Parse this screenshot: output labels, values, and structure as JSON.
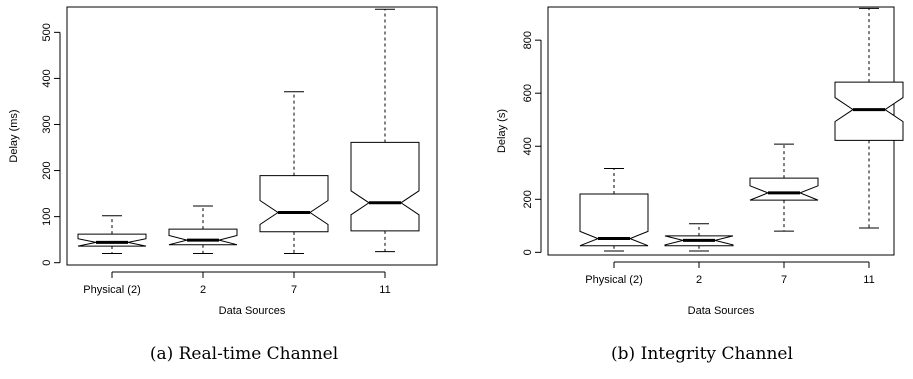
{
  "chart_data": [
    {
      "type": "boxplot",
      "caption": "(a) Real-time Channel",
      "xlabel": "Data Sources",
      "ylabel": "Delay (ms)",
      "categories": [
        "Physical (2)",
        "2",
        "7",
        "11"
      ],
      "ylim": [
        -5,
        555
      ],
      "yticks": [
        0,
        100,
        200,
        300,
        400,
        500
      ],
      "notched": true,
      "boxes": [
        {
          "min": 20,
          "q1": 36,
          "median": 44,
          "q3": 62,
          "max": 102
        },
        {
          "min": 20,
          "q1": 39,
          "median": 49,
          "q3": 73,
          "max": 123
        },
        {
          "min": 20,
          "q1": 67,
          "median": 109,
          "q3": 189,
          "max": 371
        },
        {
          "min": 24,
          "q1": 69,
          "median": 130,
          "q3": 261,
          "max": 550
        }
      ]
    },
    {
      "type": "boxplot",
      "caption": "(b) Integrity Channel",
      "xlabel": "Data Sources",
      "ylabel": "Delay (s)",
      "categories": [
        "Physical (2)",
        "2",
        "7",
        "11"
      ],
      "ylim": [
        -10,
        925
      ],
      "yticks": [
        0,
        200,
        400,
        600,
        800
      ],
      "notched": true,
      "boxes": [
        {
          "min": 5,
          "q1": 25,
          "median": 52,
          "q3": 220,
          "max": 316
        },
        {
          "min": 5,
          "q1": 25,
          "median": 45,
          "q3": 62,
          "max": 108
        },
        {
          "min": 80,
          "q1": 197,
          "median": 224,
          "q3": 280,
          "max": 408
        },
        {
          "min": 92,
          "q1": 422,
          "median": 538,
          "q3": 642,
          "max": 920
        }
      ]
    }
  ]
}
